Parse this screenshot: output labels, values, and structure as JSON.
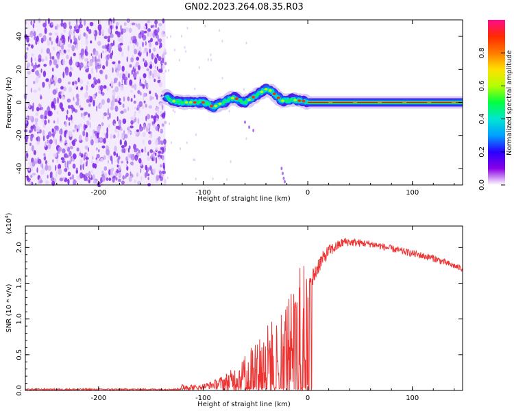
{
  "title": "GN02.2023.264.08.35.R03",
  "chart_data": [
    {
      "type": "heatmap",
      "name": "spectrogram",
      "xlabel": "Height of straight line (km)",
      "ylabel": "Frequency (Hz)",
      "xlim": [
        -270,
        148
      ],
      "ylim": [
        -50,
        50
      ],
      "x_ticks": [
        -200,
        -100,
        0,
        100
      ],
      "x_tick_labels": [
        "-200",
        "-100",
        "0",
        "100"
      ],
      "y_ticks": [
        40,
        20,
        0,
        -20,
        -40
      ],
      "y_tick_labels": [
        "40",
        "20",
        "0",
        "-20",
        "-40"
      ],
      "noise_region_x": [
        -270,
        -136
      ],
      "signal_start_x": -136,
      "signal_track": [
        {
          "x": -136,
          "f": 4
        },
        {
          "x": -130,
          "f": 1
        },
        {
          "x": -120,
          "f": 0
        },
        {
          "x": -110,
          "f": 0
        },
        {
          "x": -100,
          "f": 0
        },
        {
          "x": -95,
          "f": -1
        },
        {
          "x": -90,
          "f": -3
        },
        {
          "x": -85,
          "f": -1
        },
        {
          "x": -80,
          "f": 0
        },
        {
          "x": -75,
          "f": 2
        },
        {
          "x": -70,
          "f": 3
        },
        {
          "x": -65,
          "f": 1
        },
        {
          "x": -60,
          "f": 0
        },
        {
          "x": -55,
          "f": 2
        },
        {
          "x": -50,
          "f": 4
        },
        {
          "x": -45,
          "f": 6
        },
        {
          "x": -40,
          "f": 8
        },
        {
          "x": -35,
          "f": 7
        },
        {
          "x": -30,
          "f": 4
        },
        {
          "x": -25,
          "f": 1
        },
        {
          "x": -20,
          "f": 1
        },
        {
          "x": -15,
          "f": 2
        },
        {
          "x": -10,
          "f": 1
        },
        {
          "x": -5,
          "f": 1
        },
        {
          "x": 0,
          "f": 0
        },
        {
          "x": 148,
          "f": 0
        }
      ],
      "colorbar": {
        "label": "Normalized spectral amplitude",
        "range": [
          0,
          1
        ],
        "ticks": [
          0.0,
          0.2,
          0.4,
          0.6,
          0.8
        ],
        "tick_labels": [
          "0.0",
          "0.2",
          "0.4",
          "0.6",
          "0.8"
        ],
        "colors": [
          "#ffffff",
          "#8a00e6",
          "#2a00ff",
          "#00a0ff",
          "#00e6d2",
          "#00ff40",
          "#b4ff00",
          "#ffe000",
          "#ff7a00",
          "#ff2a00",
          "#ff0a8c"
        ]
      }
    },
    {
      "type": "line",
      "name": "snr",
      "xlabel": "Height of straight line (km)",
      "ylabel": "SNR (10 * v/v)",
      "scale_label": "(x10",
      "scale_exponent": "4",
      "scale_close": ")",
      "xlim": [
        -270,
        148
      ],
      "ylim": [
        0,
        2.3
      ],
      "x_ticks": [
        -200,
        -100,
        0,
        100
      ],
      "x_tick_labels": [
        "-200",
        "-100",
        "0",
        "100"
      ],
      "y_ticks": [
        0.0,
        0.5,
        1.0,
        1.5,
        2.0
      ],
      "y_tick_labels": [
        "0.0",
        "0.5",
        "1.0",
        "1.5",
        "2.0"
      ],
      "line_color": "#ee3333",
      "envelope": [
        {
          "x": -270,
          "base": 0.015,
          "noise": 0.02
        },
        {
          "x": -125,
          "base": 0.015,
          "noise": 0.02
        },
        {
          "x": -118,
          "base": 0.05,
          "noise": 0.12
        },
        {
          "x": -105,
          "base": 0.04,
          "noise": 0.06
        },
        {
          "x": -90,
          "base": 0.08,
          "noise": 0.12
        },
        {
          "x": -75,
          "base": 0.12,
          "noise": 0.3
        },
        {
          "x": -62,
          "base": 0.2,
          "noise": 0.5
        },
        {
          "x": -50,
          "base": 0.3,
          "noise": 1.0
        },
        {
          "x": -40,
          "base": 0.4,
          "noise": 1.05
        },
        {
          "x": -30,
          "base": 0.5,
          "noise": 1.1
        },
        {
          "x": -20,
          "base": 0.6,
          "noise": 1.4
        },
        {
          "x": -10,
          "base": 0.8,
          "noise": 1.3
        },
        {
          "x": -6,
          "base": 1.0,
          "noise": 1.2
        },
        {
          "x": 0,
          "base": 1.4,
          "noise": 0.35
        },
        {
          "x": 10,
          "base": 1.75,
          "noise": 0.25
        },
        {
          "x": 20,
          "base": 1.95,
          "noise": 0.18
        },
        {
          "x": 35,
          "base": 2.08,
          "noise": 0.12
        },
        {
          "x": 60,
          "base": 2.05,
          "noise": 0.1
        },
        {
          "x": 90,
          "base": 1.95,
          "noise": 0.1
        },
        {
          "x": 120,
          "base": 1.85,
          "noise": 0.1
        },
        {
          "x": 148,
          "base": 1.7,
          "noise": 0.08
        }
      ]
    }
  ]
}
